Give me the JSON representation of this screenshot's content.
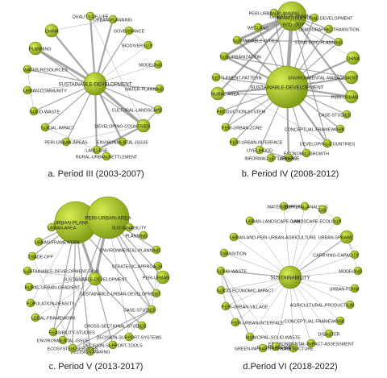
{
  "panels": [
    {
      "caption": "a. Period III (2003-2007)",
      "nodes": [
        {
          "label": "SUSTAINABLE-DEVELOPMENT",
          "size": 3
        },
        {
          "label": "QUALITY-OF-LIFE",
          "size": 1
        },
        {
          "label": "URBAN-PLANNING",
          "size": 1
        },
        {
          "label": "GOVERNANCE",
          "size": 1
        },
        {
          "label": "BIODIVERSITY",
          "size": 1
        },
        {
          "label": "MODELING",
          "size": 1
        },
        {
          "label": "WATER-PLANNING",
          "size": 1
        },
        {
          "label": "CULTURAL-LANDSCAPE",
          "size": 1
        },
        {
          "label": "DEVELOPING-COUNTRIES",
          "size": 2
        },
        {
          "label": "ENVIRONMENTAL-ISSUE",
          "size": 1
        },
        {
          "label": "LAND-USE",
          "size": 1
        },
        {
          "label": "RURAL-URBAN-SETTLEMENT",
          "size": 1
        },
        {
          "label": "PERI-URBAN-AREAS",
          "size": 1
        },
        {
          "label": "SOCIAL-IMPACT",
          "size": 1
        },
        {
          "label": "SOLID-WASTE",
          "size": 1
        },
        {
          "label": "URBAN-COMMUNITY",
          "size": 1
        },
        {
          "label": "WATER-RESOURCES",
          "size": 1
        },
        {
          "label": "PLANNING",
          "size": 2
        },
        {
          "label": "CHINA",
          "size": 2
        }
      ],
      "edges": [
        [
          "SUSTAINABLE-DEVELOPMENT",
          "QUALITY-OF-LIFE",
          3
        ],
        [
          "SUSTAINABLE-DEVELOPMENT",
          "URBAN-PLANNING",
          3
        ],
        [
          "SUSTAINABLE-DEVELOPMENT",
          "GOVERNANCE",
          2
        ],
        [
          "SUSTAINABLE-DEVELOPMENT",
          "BIODIVERSITY",
          1
        ],
        [
          "SUSTAINABLE-DEVELOPMENT",
          "MODELING",
          1
        ],
        [
          "SUSTAINABLE-DEVELOPMENT",
          "WATER-PLANNING",
          2
        ],
        [
          "SUSTAINABLE-DEVELOPMENT",
          "CULTURAL-LANDSCAPE",
          2
        ],
        [
          "SUSTAINABLE-DEVELOPMENT",
          "DEVELOPING-COUNTRIES",
          4
        ],
        [
          "SUSTAINABLE-DEVELOPMENT",
          "ENVIRONMENTAL-ISSUE",
          3
        ],
        [
          "SUSTAINABLE-DEVELOPMENT",
          "LAND-USE",
          3
        ],
        [
          "SUSTAINABLE-DEVELOPMENT",
          "PERI-URBAN-AREAS",
          2
        ],
        [
          "SUSTAINABLE-DEVELOPMENT",
          "SOCIAL-IMPACT",
          2
        ],
        [
          "SUSTAINABLE-DEVELOPMENT",
          "SOLID-WASTE",
          2
        ],
        [
          "SUSTAINABLE-DEVELOPMENT",
          "URBAN-COMMUNITY",
          1
        ],
        [
          "SUSTAINABLE-DEVELOPMENT",
          "WATER-RESOURCES",
          2
        ],
        [
          "SUSTAINABLE-DEVELOPMENT",
          "PLANNING",
          4
        ],
        [
          "SUSTAINABLE-DEVELOPMENT",
          "CHINA",
          3
        ],
        [
          "PLANNING",
          "DEVELOPING-COUNTRIES",
          2
        ],
        [
          "CHINA",
          "URBAN-PLANNING",
          1
        ],
        [
          "QUALITY-OF-LIFE",
          "DEVELOPING-COUNTRIES",
          1
        ],
        [
          "LAND-USE",
          "DEVELOPING-COUNTRIES",
          3
        ],
        [
          "CULTURAL-LANDSCAPE",
          "DEVELOPING-COUNTRIES",
          2
        ],
        [
          "PERI-URBAN-AREAS",
          "DEVELOPING-COUNTRIES",
          1
        ],
        [
          "SOCIAL-IMPACT",
          "LAND-USE",
          1
        ],
        [
          "WATER-RESOURCES",
          "SOLID-WASTE",
          1
        ],
        [
          "GOVERNANCE",
          "BIODIVERSITY",
          1
        ]
      ]
    },
    {
      "caption": "b. Period IV (2008-2012)",
      "nodes": [
        {
          "label": "SUSTAINABLE-DEVELOPMENT",
          "size": 5
        },
        {
          "label": "URBAN-PLANNING",
          "size": 4
        },
        {
          "label": "PERI-URBAN-PLANNING",
          "size": 1
        },
        {
          "label": "INFRASTRUCTURAL-DEVELOPMENT",
          "size": 1
        },
        {
          "label": "DEMOGRAPHIC-TRANSITION",
          "size": 1
        },
        {
          "label": "STRATEGIC-PLANNING",
          "size": 1
        },
        {
          "label": "CHINA",
          "size": 2
        },
        {
          "label": "ENVIRONMENTAL-MANAGEMENT",
          "size": 2
        },
        {
          "label": "PERI-URBAN",
          "size": 2
        },
        {
          "label": "CASE-STUDIES",
          "size": 1
        },
        {
          "label": "CONCEPTUAL-FRAMEWORK",
          "size": 1
        },
        {
          "label": "DEVELOPING-COUNTRIES",
          "size": 1
        },
        {
          "label": "ECONOMIC-GROWTH",
          "size": 1
        },
        {
          "label": "LAND-USE",
          "size": 1
        },
        {
          "label": "INFORMAL-SETTLEMENT",
          "size": 1
        },
        {
          "label": "LIVELIHOOD",
          "size": 1
        },
        {
          "label": "PERI-URBAN-INTERFACE",
          "size": 1
        },
        {
          "label": "PERI-URBAN-ZONE",
          "size": 1
        },
        {
          "label": "PRODUCTION-SYSTEM",
          "size": 1
        },
        {
          "label": "RURAL-AREA",
          "size": 2
        },
        {
          "label": "SETTLEMENT-PATTERN",
          "size": 1
        },
        {
          "label": "SUBURBANIZATION",
          "size": 1
        },
        {
          "label": "SUSTAINABLE-CITIES",
          "size": 1
        },
        {
          "label": "WETLAND",
          "size": 1
        },
        {
          "label": "ECOLOGY",
          "size": 1
        }
      ],
      "edges": [
        [
          "SUSTAINABLE-DEVELOPMENT",
          "URBAN-PLANNING",
          5
        ],
        [
          "SUSTAINABLE-DEVELOPMENT",
          "PERI-URBAN-PLANNING",
          2
        ],
        [
          "SUSTAINABLE-DEVELOPMENT",
          "INFRASTRUCTURAL-DEVELOPMENT",
          2
        ],
        [
          "SUSTAINABLE-DEVELOPMENT",
          "DEMOGRAPHIC-TRANSITION",
          2
        ],
        [
          "SUSTAINABLE-DEVELOPMENT",
          "STRATEGIC-PLANNING",
          2
        ],
        [
          "SUSTAINABLE-DEVELOPMENT",
          "CHINA",
          3
        ],
        [
          "SUSTAINABLE-DEVELOPMENT",
          "ENVIRONMENTAL-MANAGEMENT",
          3
        ],
        [
          "SUSTAINABLE-DEVELOPMENT",
          "PERI-URBAN",
          3
        ],
        [
          "SUSTAINABLE-DEVELOPMENT",
          "CASE-STUDIES",
          2
        ],
        [
          "SUSTAINABLE-DEVELOPMENT",
          "CONCEPTUAL-FRAMEWORK",
          2
        ],
        [
          "SUSTAINABLE-DEVELOPMENT",
          "DEVELOPING-COUNTRIES",
          3
        ],
        [
          "SUSTAINABLE-DEVELOPMENT",
          "ECONOMIC-GROWTH",
          2
        ],
        [
          "SUSTAINABLE-DEVELOPMENT",
          "LAND-USE",
          3
        ],
        [
          "SUSTAINABLE-DEVELOPMENT",
          "LIVELIHOOD",
          2
        ],
        [
          "SUSTAINABLE-DEVELOPMENT",
          "PERI-URBAN-INTERFACE",
          2
        ],
        [
          "SUSTAINABLE-DEVELOPMENT",
          "PERI-URBAN-ZONE",
          2
        ],
        [
          "SUSTAINABLE-DEVELOPMENT",
          "PRODUCTION-SYSTEM",
          2
        ],
        [
          "SUSTAINABLE-DEVELOPMENT",
          "RURAL-AREA",
          3
        ],
        [
          "SUSTAINABLE-DEVELOPMENT",
          "SETTLEMENT-PATTERN",
          2
        ],
        [
          "SUSTAINABLE-DEVELOPMENT",
          "SUBURBANIZATION",
          3
        ],
        [
          "SUSTAINABLE-DEVELOPMENT",
          "SUSTAINABLE-CITIES",
          3
        ],
        [
          "SUSTAINABLE-DEVELOPMENT",
          "WETLAND",
          2
        ],
        [
          "URBAN-PLANNING",
          "SUSTAINABLE-CITIES",
          4
        ],
        [
          "URBAN-PLANNING",
          "SUBURBANIZATION",
          4
        ],
        [
          "URBAN-PLANNING",
          "WETLAND",
          3
        ],
        [
          "URBAN-PLANNING",
          "RURAL-AREA",
          3
        ],
        [
          "URBAN-PLANNING",
          "PERI-URBAN",
          3
        ],
        [
          "URBAN-PLANNING",
          "DEVELOPING-COUNTRIES",
          2
        ],
        [
          "URBAN-PLANNING",
          "STRATEGIC-PLANNING",
          2
        ],
        [
          "URBAN-PLANNING",
          "DEMOGRAPHIC-TRANSITION",
          2
        ],
        [
          "URBAN-PLANNING",
          "PERI-URBAN-ZONE",
          2
        ],
        [
          "RURAL-AREA",
          "PERI-URBAN",
          2
        ],
        [
          "LAND-USE",
          "LIVELIHOOD",
          2
        ],
        [
          "SUBURBANIZATION",
          "ENVIRONMENTAL-MANAGEMENT",
          2
        ],
        [
          "SUSTAINABLE-CITIES",
          "STRATEGIC-PLANNING",
          2
        ],
        [
          "SETTLEMENT-PATTERN",
          "DEVELOPING-COUNTRIES",
          1
        ],
        [
          "CHINA",
          "PERI-URBAN-PLANNING",
          1
        ]
      ]
    },
    {
      "caption": "c. Period V (2013-2017)",
      "nodes": [
        {
          "label": "URBAN-PLANNING",
          "size": 5
        },
        {
          "label": "PERI-URBAN-AREA",
          "size": 5
        },
        {
          "label": "SUSTAINABILITY",
          "size": 1
        },
        {
          "label": "PLANNING",
          "size": 1
        },
        {
          "label": "ENVIRONMENTAL-PLANNING",
          "size": 1
        },
        {
          "label": "STRATEGIC-APPROACH",
          "size": 1
        },
        {
          "label": "PERI-URBAN",
          "size": 2
        },
        {
          "label": "SUSTAINABLE-URBAN-DEVELOPMENT",
          "size": 1
        },
        {
          "label": "CASE-STUDIES",
          "size": 1
        },
        {
          "label": "CROSS-SECTIONAL-STUDIES",
          "size": 1
        },
        {
          "label": "DECISION-SUPPORT-SYSTEMS",
          "size": 1
        },
        {
          "label": "DECISION-SUPPORT-TOOLS",
          "size": 1
        },
        {
          "label": "DECISION-MAKING",
          "size": 1
        },
        {
          "label": "ECOSYSTEM-SERVICES",
          "size": 1
        },
        {
          "label": "ENVIRONMENTAL-ISSUE",
          "size": 1
        },
        {
          "label": "FEASIBILITY-STUDIES",
          "size": 1
        },
        {
          "label": "LEGAL-FRAMEWORK",
          "size": 1
        },
        {
          "label": "POPULATION-DENSITY",
          "size": 1
        },
        {
          "label": "RURAL-URBAN-GRADIENT",
          "size": 1
        },
        {
          "label": "SUSTAINABLE-DEVELOPMENT-GOAL",
          "size": 1
        },
        {
          "label": "TRADE-OFF",
          "size": 1
        },
        {
          "label": "URBAN-FRAMEWORK",
          "size": 1
        },
        {
          "label": "URBAN-AREA",
          "size": 1
        },
        {
          "label": "SUSTAINABLE-DEVELOPMENT",
          "size": 2
        }
      ],
      "edges": [
        [
          "URBAN-PLANNING",
          "PERI-URBAN-AREA",
          5
        ],
        [
          "URBAN-PLANNING",
          "SUSTAINABLE-DEVELOPMENT",
          4
        ],
        [
          "PERI-URBAN-AREA",
          "SUSTAINABLE-DEVELOPMENT",
          4
        ],
        [
          "URBAN-PLANNING",
          "CASE-STUDIES",
          2
        ],
        [
          "URBAN-PLANNING",
          "TRADE-OFF",
          2
        ],
        [
          "URBAN-PLANNING",
          "URBAN-FRAMEWORK",
          2
        ],
        [
          "URBAN-PLANNING",
          "FEASIBILITY-STUDIES",
          2
        ],
        [
          "URBAN-PLANNING",
          "ECOSYSTEM-SERVICES",
          2
        ],
        [
          "URBAN-PLANNING",
          "POPULATION-DENSITY",
          1
        ],
        [
          "URBAN-PLANNING",
          "DECISION-MAKING",
          2
        ],
        [
          "PERI-URBAN-AREA",
          "PERI-URBAN",
          2
        ],
        [
          "PERI-URBAN-AREA",
          "CASE-STUDIES",
          2
        ],
        [
          "PERI-URBAN-AREA",
          "SUSTAINABLE-URBAN-DEVELOPMENT",
          2
        ],
        [
          "PERI-URBAN-AREA",
          "ENVIRONMENTAL-PLANNING",
          2
        ],
        [
          "PERI-URBAN-AREA",
          "DECISION-SUPPORT-SYSTEMS",
          1
        ],
        [
          "PERI-URBAN-AREA",
          "ENVIRONMENTAL-ISSUE",
          2
        ],
        [
          "SUSTAINABLE-DEVELOPMENT",
          "DECISION-SUPPORT-TOOLS",
          2
        ],
        [
          "SUSTAINABLE-DEVELOPMENT",
          "CROSS-SECTIONAL-STUDIES",
          2
        ],
        [
          "SUSTAINABLE-DEVELOPMENT",
          "FEASIBILITY-STUDIES",
          2
        ],
        [
          "SUSTAINABLE-DEVELOPMENT",
          "LEGAL-FRAMEWORK",
          1
        ],
        [
          "SUSTAINABLE-DEVELOPMENT",
          "RURAL-URBAN-GRADIENT",
          1
        ],
        [
          "SUSTAINABLE-DEVELOPMENT",
          "SUSTAINABLE-DEVELOPMENT-GOAL",
          1
        ],
        [
          "CASE-STUDIES",
          "ECOSYSTEM-SERVICES",
          2
        ],
        [
          "CASE-STUDIES",
          "DECISION-MAKING",
          2
        ],
        [
          "TRADE-OFF",
          "ECOSYSTEM-SERVICES",
          1
        ],
        [
          "PERI-URBAN",
          "DECISION-SUPPORT-SYSTEMS",
          1
        ],
        [
          "STRATEGIC-APPROACH",
          "CASE-STUDIES",
          1
        ]
      ]
    },
    {
      "caption": "d.Period VI (2018-2022)",
      "nodes": [
        {
          "label": "SUSTAINABILITY",
          "size": 3
        },
        {
          "label": "WATER-SUPPLY",
          "size": 1
        },
        {
          "label": "TEMPORAL-ANALYSIS",
          "size": 1
        },
        {
          "label": "GIS",
          "size": 1
        },
        {
          "label": "LANDSCAPE-ECOLOGY",
          "size": 1
        },
        {
          "label": "URBAN-SPRAWL",
          "size": 2
        },
        {
          "label": "CARRYING-CAPACITY",
          "size": 1
        },
        {
          "label": "MODELING",
          "size": 1
        },
        {
          "label": "URBAN-FORM",
          "size": 1
        },
        {
          "label": "AGRICULTURAL-PRODUCTION",
          "size": 1
        },
        {
          "label": "CONCEPTUAL-FRAMEWORK",
          "size": 1
        },
        {
          "label": "DISASTER",
          "size": 1
        },
        {
          "label": "ENVIRONMENTAL-IMPACT-ASSESSMENT",
          "size": 1
        },
        {
          "label": "INFRASTRUCTURE",
          "size": 1
        },
        {
          "label": "HUMAN-ACTIVITY",
          "size": 1
        },
        {
          "label": "GREEN-INFRASTRUCTURE",
          "size": 1
        },
        {
          "label": "MUNICIPAL-SOLID-WASTE",
          "size": 1
        },
        {
          "label": "PERI-URBAN-INTERFACE",
          "size": 1
        },
        {
          "label": "PERI-URBAN-VILLAGE",
          "size": 1
        },
        {
          "label": "SOCIO-ECONOMIC-IMPACT",
          "size": 1
        },
        {
          "label": "SOLID-WASTE",
          "size": 1
        },
        {
          "label": "TRANSITION",
          "size": 1
        },
        {
          "label": "URBAN-AND-PERI-URBAN-AGRICULTURE",
          "size": 1
        },
        {
          "label": "URBAN-LANDSCAPE-DAM",
          "size": 1
        }
      ],
      "edges": [
        [
          "SUSTAINABILITY",
          "WATER-SUPPLY",
          1
        ],
        [
          "SUSTAINABILITY",
          "TEMPORAL-ANALYSIS",
          1
        ],
        [
          "SUSTAINABILITY",
          "GIS",
          1
        ],
        [
          "SUSTAINABILITY",
          "LANDSCAPE-ECOLOGY",
          1
        ],
        [
          "SUSTAINABILITY",
          "URBAN-SPRAWL",
          2
        ],
        [
          "SUSTAINABILITY",
          "CARRYING-CAPACITY",
          1
        ],
        [
          "SUSTAINABILITY",
          "MODELING",
          1
        ],
        [
          "SUSTAINABILITY",
          "URBAN-FORM",
          1
        ],
        [
          "SUSTAINABILITY",
          "AGRICULTURAL-PRODUCTION",
          1
        ],
        [
          "SUSTAINABILITY",
          "CONCEPTUAL-FRAMEWORK",
          1
        ],
        [
          "SUSTAINABILITY",
          "DISASTER",
          1
        ],
        [
          "SUSTAINABILITY",
          "ENVIRONMENTAL-IMPACT-ASSESSMENT",
          1
        ],
        [
          "SUSTAINABILITY",
          "INFRASTRUCTURE",
          1
        ],
        [
          "SUSTAINABILITY",
          "HUMAN-ACTIVITY",
          1
        ],
        [
          "SUSTAINABILITY",
          "MUNICIPAL-SOLID-WASTE",
          1
        ],
        [
          "SUSTAINABILITY",
          "PERI-URBAN-INTERFACE",
          1
        ],
        [
          "SUSTAINABILITY",
          "PERI-URBAN-VILLAGE",
          1
        ],
        [
          "SUSTAINABILITY",
          "SOCIO-ECONOMIC-IMPACT",
          1
        ],
        [
          "SUSTAINABILITY",
          "SOLID-WASTE",
          2
        ],
        [
          "SUSTAINABILITY",
          "TRANSITION",
          1
        ],
        [
          "SUSTAINABILITY",
          "URBAN-AND-PERI-URBAN-AGRICULTURE",
          1
        ],
        [
          "SUSTAINABILITY",
          "URBAN-LANDSCAPE-DAM",
          1
        ],
        [
          "SOLID-WASTE",
          "MUNICIPAL-SOLID-WASTE",
          2
        ],
        [
          "SOLID-WASTE",
          "HUMAN-ACTIVITY",
          1
        ],
        [
          "SOLID-WASTE",
          "PERI-URBAN-VILLAGE",
          1
        ],
        [
          "URBAN-SPRAWL",
          "CARRYING-CAPACITY",
          1
        ],
        [
          "URBAN-SPRAWL",
          "MODELING",
          1
        ],
        [
          "GIS",
          "LANDSCAPE-ECOLOGY",
          1
        ],
        [
          "SOCIO-ECONOMIC-IMPACT",
          "PERI-URBAN-INTERFACE",
          1
        ],
        [
          "DISASTER",
          "INFRASTRUCTURE",
          1
        ]
      ]
    }
  ],
  "colors": {
    "node_fill_light": "#d8ec52",
    "node_fill_dark": "#7d9a14",
    "node_stroke": "#6f8a12",
    "edge": "#8a8a8a",
    "label": "#1a1a1a"
  }
}
